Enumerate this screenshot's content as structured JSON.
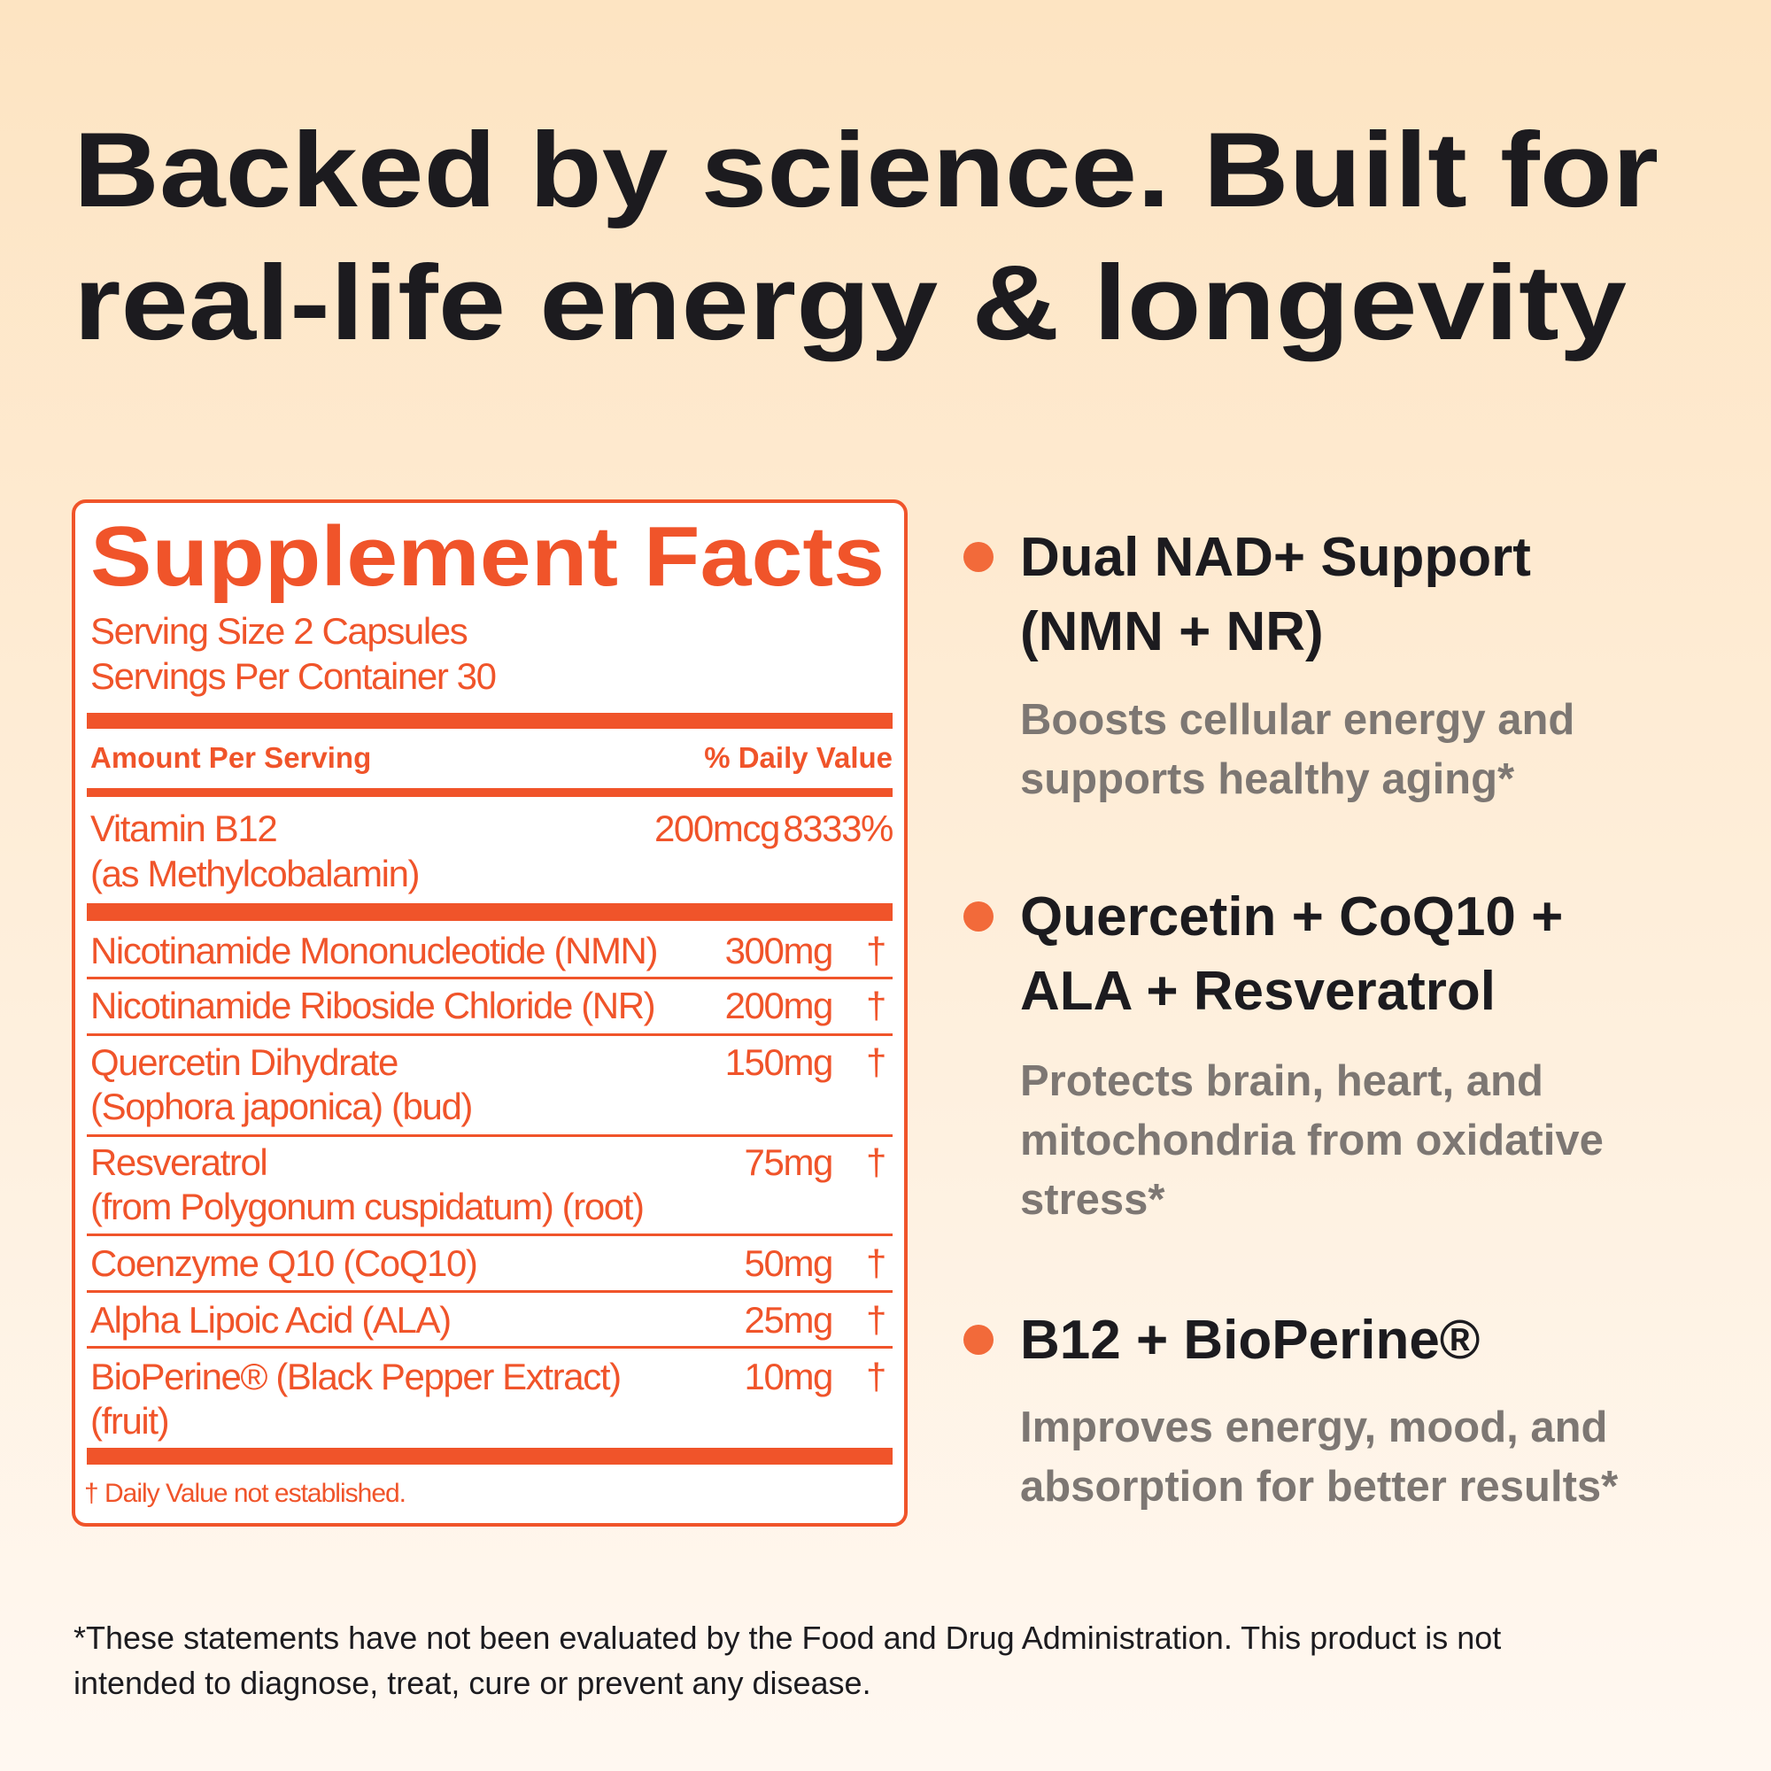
{
  "header": {
    "title_lines": [
      "Backed by science. Built for",
      "real-life energy & longevity"
    ]
  },
  "facts": {
    "title": "Supplement Facts",
    "serving_size": "Serving Size 2 Capsules",
    "servings_per_container": "Servings Per Container 30",
    "amount_header": "Amount Per Serving",
    "dv_header": "% Daily Value",
    "vitamin": {
      "name_lines": [
        "Vitamin B12",
        "(as Methylcobalamin)"
      ],
      "amount": "200mcg",
      "dv": "8333%"
    },
    "rows": [
      {
        "name_lines": [
          "Nicotinamide Mononucleotide (NMN)"
        ],
        "amount": "300mg",
        "dv": "†"
      },
      {
        "name_lines": [
          "Nicotinamide Riboside Chloride (NR)"
        ],
        "amount": "200mg",
        "dv": "†"
      },
      {
        "name_lines": [
          "Quercetin Dihydrate",
          "(Sophora japonica) (bud)"
        ],
        "amount": "150mg",
        "dv": "†"
      },
      {
        "name_lines": [
          "Resveratrol",
          "(from Polygonum cuspidatum) (root)"
        ],
        "amount": "75mg",
        "dv": "†"
      },
      {
        "name_lines": [
          "Coenzyme Q10 (CoQ10)"
        ],
        "amount": "50mg",
        "dv": "†"
      },
      {
        "name_lines": [
          "Alpha Lipoic Acid (ALA)"
        ],
        "amount": "25mg",
        "dv": "†"
      },
      {
        "name_lines": [
          "BioPerine® (Black Pepper Extract)",
          "(fruit)"
        ],
        "amount": "10mg",
        "dv": "†"
      }
    ],
    "footnote": "† Daily Value not established."
  },
  "features": [
    {
      "title_lines": [
        "Dual NAD+ Support",
        "(NMN + NR)"
      ],
      "desc_lines": [
        "Boosts cellular energy and",
        "supports healthy aging*"
      ]
    },
    {
      "title_lines": [
        "Quercetin + CoQ10 +",
        "ALA + Resveratrol"
      ],
      "desc_lines": [
        "Protects brain, heart, and",
        "mitochondria from oxidative",
        "stress*"
      ]
    },
    {
      "title_lines": [
        "B12 + BioPerine®"
      ],
      "desc_lines": [
        "Improves energy, mood, and",
        "absorption for better results*"
      ]
    }
  ],
  "disclaimer_lines": [
    "*These statements have not been evaluated by the Food and Drug Administration. This product is not",
    "intended to diagnose, treat, cure or prevent any disease."
  ]
}
